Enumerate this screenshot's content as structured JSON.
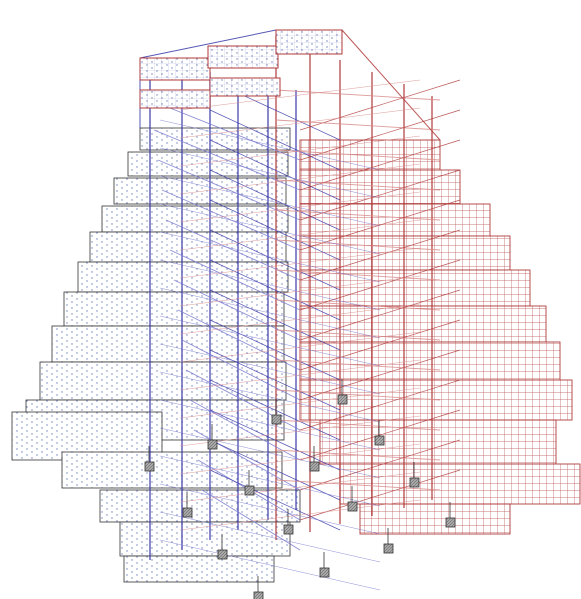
{
  "diagram": {
    "kind": "3d-wireframe-structural-model",
    "colors": {
      "background": "#ffffff",
      "frame_blue": "#3a3aa8",
      "frame_blue_light": "#7a7ad0",
      "frame_red": "#b03a3a",
      "frame_red_light": "#d88a8a",
      "slab_fill_left": "#ffffff",
      "slab_dots": "#6b7fb8",
      "slab_edge": "#333333",
      "support_fill": "#a8a8a8",
      "support_edge": "#333333"
    },
    "left_slab_pattern": "dotted",
    "right_slab_pattern": "grid",
    "support_icon": "square-pad-support"
  }
}
